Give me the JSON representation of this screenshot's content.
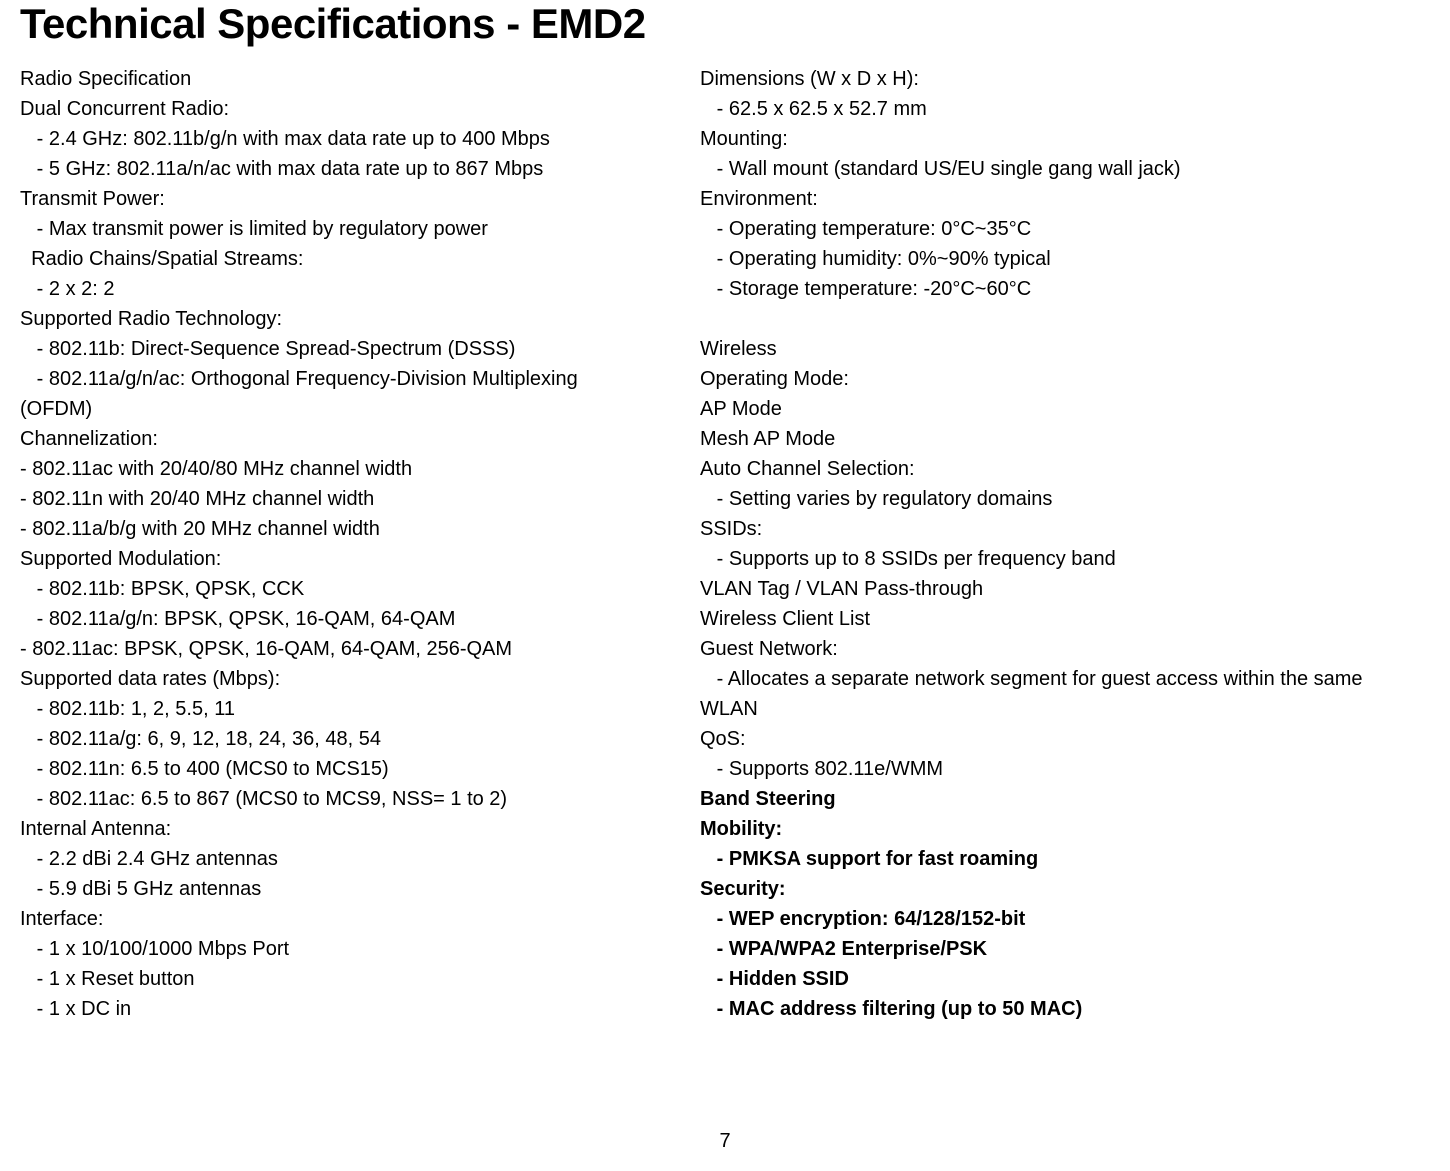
{
  "title": "Technical Specifications - EMD2",
  "page_number": "7",
  "typography": {
    "title_fontsize": 42,
    "body_fontsize": 20,
    "line_height": 1.5,
    "title_weight": 800,
    "bold_weight": 700,
    "color": "#000000",
    "background": "#ffffff"
  },
  "left_column": [
    {
      "text": "Radio Specification",
      "bold": false
    },
    {
      "text": "Dual Concurrent Radio:",
      "bold": false
    },
    {
      "text": "   - 2.4 GHz: 802.11b/g/n with max data rate up to 400 Mbps",
      "bold": false
    },
    {
      "text": "   - 5 GHz: 802.11a/n/ac with max data rate up to 867 Mbps",
      "bold": false
    },
    {
      "text": "Transmit Power:",
      "bold": false
    },
    {
      "text": "   - Max transmit power is limited by regulatory power",
      "bold": false
    },
    {
      "text": "  Radio Chains/Spatial Streams:",
      "bold": false
    },
    {
      "text": "   - 2 x 2: 2",
      "bold": false
    },
    {
      "text": "Supported Radio Technology:",
      "bold": false
    },
    {
      "text": "   - 802.11b: Direct-Sequence Spread-Spectrum (DSSS)",
      "bold": false
    },
    {
      "text": "   - 802.11a/g/n/ac: Orthogonal Frequency-Division Multiplexing (OFDM)",
      "bold": false
    },
    {
      "text": "Channelization:",
      "bold": false
    },
    {
      "text": "- 802.11ac with 20/40/80 MHz channel width",
      "bold": false
    },
    {
      "text": "- 802.11n with 20/40 MHz channel width",
      "bold": false
    },
    {
      "text": "- 802.11a/b/g with 20 MHz channel width",
      "bold": false
    },
    {
      "text": "Supported Modulation:",
      "bold": false
    },
    {
      "text": "   - 802.11b: BPSK, QPSK, CCK",
      "bold": false
    },
    {
      "text": "   - 802.11a/g/n: BPSK, QPSK, 16-QAM, 64-QAM",
      "bold": false
    },
    {
      "text": "- 802.11ac: BPSK, QPSK, 16-QAM, 64-QAM, 256-QAM",
      "bold": false
    },
    {
      "text": "Supported data rates (Mbps):",
      "bold": false
    },
    {
      "text": "   - 802.11b: 1, 2, 5.5, 11",
      "bold": false
    },
    {
      "text": "   - 802.11a/g: 6, 9, 12, 18, 24, 36, 48, 54",
      "bold": false
    },
    {
      "text": "   - 802.11n: 6.5 to 400 (MCS0 to MCS15)",
      "bold": false
    },
    {
      "text": "   - 802.11ac: 6.5 to 867 (MCS0 to MCS9, NSS= 1 to 2)",
      "bold": false
    },
    {
      "text": "Internal Antenna:",
      "bold": false
    },
    {
      "text": "   - 2.2 dBi 2.4 GHz antennas",
      "bold": false
    },
    {
      "text": "   - 5.9 dBi 5 GHz antennas",
      "bold": false
    },
    {
      "text": "Interface:",
      "bold": false
    },
    {
      "text": "   - 1 x 10/100/1000 Mbps Port",
      "bold": false
    },
    {
      "text": "   - 1 x Reset button",
      "bold": false
    },
    {
      "text": "   - 1 x DC in",
      "bold": false
    }
  ],
  "right_column": [
    {
      "text": "Dimensions (W x D x H):",
      "bold": false
    },
    {
      "text": "   - 62.5 x 62.5 x 52.7 mm",
      "bold": false
    },
    {
      "text": "Mounting:",
      "bold": false
    },
    {
      "text": "   - Wall mount (standard US/EU single gang wall jack)",
      "bold": false
    },
    {
      "text": "Environment:",
      "bold": false
    },
    {
      "text": "   - Operating temperature: 0°C~35°C",
      "bold": false
    },
    {
      "text": "   - Operating humidity: 0%~90% typical",
      "bold": false
    },
    {
      "text": "   - Storage temperature: -20°C~60°C",
      "bold": false
    },
    {
      "text": " ",
      "bold": false
    },
    {
      "text": "Wireless",
      "bold": false
    },
    {
      "text": "Operating Mode:",
      "bold": false
    },
    {
      "text": "AP Mode",
      "bold": false
    },
    {
      "text": "Mesh AP Mode",
      "bold": false
    },
    {
      "text": "Auto Channel Selection:",
      "bold": false
    },
    {
      "text": "   - Setting varies by regulatory domains",
      "bold": false
    },
    {
      "text": "SSIDs:",
      "bold": false
    },
    {
      "text": "   - Supports up to 8 SSIDs per frequency band",
      "bold": false
    },
    {
      "text": "VLAN Tag / VLAN Pass-through",
      "bold": false
    },
    {
      "text": "Wireless Client List",
      "bold": false
    },
    {
      "text": "Guest Network:",
      "bold": false
    },
    {
      "text": "   - Allocates a separate network segment for guest access within the same WLAN",
      "bold": false
    },
    {
      "text": "QoS:",
      "bold": false
    },
    {
      "text": "   - Supports 802.11e/WMM",
      "bold": false
    },
    {
      "text": "Band Steering",
      "bold": true
    },
    {
      "text": "Mobility:",
      "bold": true
    },
    {
      "text": "   - PMKSA support for fast roaming",
      "bold": true
    },
    {
      "text": "Security:",
      "bold": true
    },
    {
      "text": "   - WEP encryption: 64/128/152-bit",
      "bold": true
    },
    {
      "text": "   - WPA/WPA2 Enterprise/PSK",
      "bold": true
    },
    {
      "text": "   - Hidden SSID",
      "bold": true
    },
    {
      "text": "   - MAC address filtering (up to 50 MAC)",
      "bold": true
    }
  ]
}
